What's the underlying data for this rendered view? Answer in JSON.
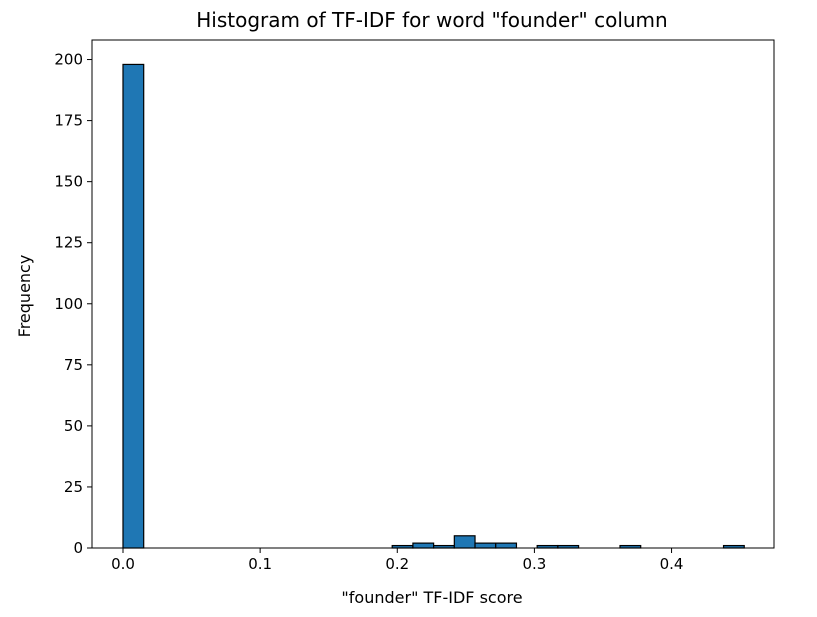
{
  "chart_data": {
    "type": "bar",
    "title": "Histogram of TF-IDF for word \"founder\" column",
    "xlabel": "\"founder\" TF-IDF score",
    "ylabel": "Frequency",
    "xlim": [
      -0.0226,
      0.4747
    ],
    "ylim": [
      0,
      208
    ],
    "bar_color": "#1f77b4",
    "edge_color": "#000000",
    "grid": false,
    "x_ticks": [
      {
        "value": 0.0,
        "label": "0.0"
      },
      {
        "value": 0.1,
        "label": "0.1"
      },
      {
        "value": 0.2,
        "label": "0.2"
      },
      {
        "value": 0.3,
        "label": "0.3"
      },
      {
        "value": 0.4,
        "label": "0.4"
      }
    ],
    "y_ticks": [
      {
        "value": 0,
        "label": "0"
      },
      {
        "value": 25,
        "label": "25"
      },
      {
        "value": 50,
        "label": "50"
      },
      {
        "value": 75,
        "label": "75"
      },
      {
        "value": 100,
        "label": "100"
      },
      {
        "value": 125,
        "label": "125"
      },
      {
        "value": 150,
        "label": "150"
      },
      {
        "value": 175,
        "label": "175"
      },
      {
        "value": 200,
        "label": "200"
      }
    ],
    "bins": [
      {
        "start": 0.0,
        "end": 0.0151,
        "count": 198
      },
      {
        "start": 0.0151,
        "end": 0.0302,
        "count": 0
      },
      {
        "start": 0.0302,
        "end": 0.0453,
        "count": 0
      },
      {
        "start": 0.0453,
        "end": 0.0604,
        "count": 0
      },
      {
        "start": 0.0604,
        "end": 0.0755,
        "count": 0
      },
      {
        "start": 0.0755,
        "end": 0.0906,
        "count": 0
      },
      {
        "start": 0.0906,
        "end": 0.1057,
        "count": 0
      },
      {
        "start": 0.1057,
        "end": 0.1208,
        "count": 0
      },
      {
        "start": 0.1208,
        "end": 0.1359,
        "count": 0
      },
      {
        "start": 0.1359,
        "end": 0.151,
        "count": 0
      },
      {
        "start": 0.151,
        "end": 0.1661,
        "count": 0
      },
      {
        "start": 0.1661,
        "end": 0.1812,
        "count": 0
      },
      {
        "start": 0.1812,
        "end": 0.1963,
        "count": 0
      },
      {
        "start": 0.1963,
        "end": 0.2114,
        "count": 1
      },
      {
        "start": 0.2114,
        "end": 0.2265,
        "count": 2
      },
      {
        "start": 0.2265,
        "end": 0.2416,
        "count": 1
      },
      {
        "start": 0.2416,
        "end": 0.2567,
        "count": 5
      },
      {
        "start": 0.2567,
        "end": 0.2718,
        "count": 2
      },
      {
        "start": 0.2718,
        "end": 0.2869,
        "count": 2
      },
      {
        "start": 0.2869,
        "end": 0.302,
        "count": 0
      },
      {
        "start": 0.302,
        "end": 0.3171,
        "count": 1
      },
      {
        "start": 0.3171,
        "end": 0.3322,
        "count": 1
      },
      {
        "start": 0.3322,
        "end": 0.3473,
        "count": 0
      },
      {
        "start": 0.3473,
        "end": 0.3624,
        "count": 0
      },
      {
        "start": 0.3624,
        "end": 0.3775,
        "count": 1
      },
      {
        "start": 0.3775,
        "end": 0.3926,
        "count": 0
      },
      {
        "start": 0.3926,
        "end": 0.4077,
        "count": 0
      },
      {
        "start": 0.4077,
        "end": 0.4228,
        "count": 0
      },
      {
        "start": 0.4228,
        "end": 0.4379,
        "count": 0
      },
      {
        "start": 0.4379,
        "end": 0.453,
        "count": 1
      }
    ]
  }
}
